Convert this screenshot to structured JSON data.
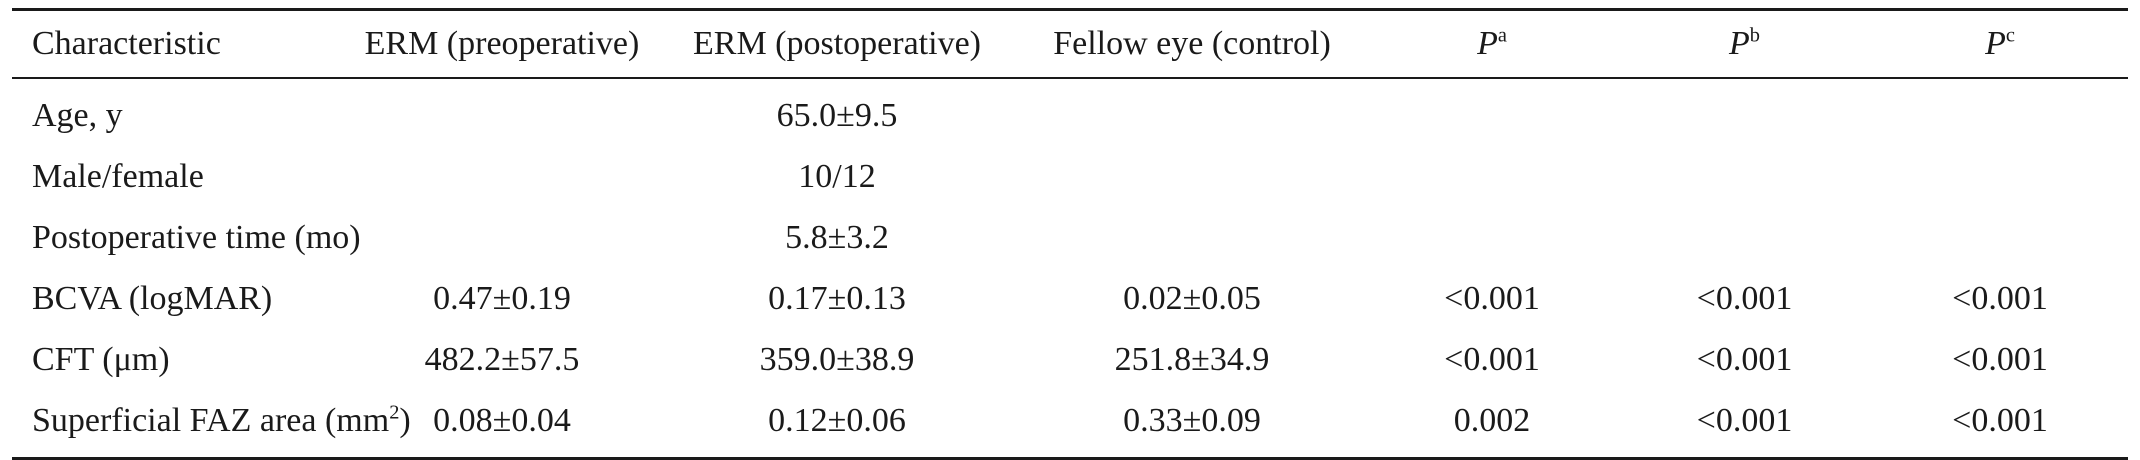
{
  "table": {
    "headers": {
      "characteristic": "Characteristic",
      "erm_pre": "ERM (preoperative)",
      "erm_post": "ERM (postoperative)",
      "fellow": "Fellow eye (control)",
      "pa": {
        "base": "P",
        "sup": "a"
      },
      "pb": {
        "base": "P",
        "sup": "b"
      },
      "pc": {
        "base": "P",
        "sup": "c"
      }
    },
    "rows": [
      {
        "label": "Age, y",
        "pre": "",
        "post": "65.0±9.5",
        "fellow": "",
        "pa": "",
        "pb": "",
        "pc": ""
      },
      {
        "label": "Male/female",
        "pre": "",
        "post": "10/12",
        "fellow": "",
        "pa": "",
        "pb": "",
        "pc": ""
      },
      {
        "label": "Postoperative time (mo)",
        "pre": "",
        "post": "5.8±3.2",
        "fellow": "",
        "pa": "",
        "pb": "",
        "pc": ""
      },
      {
        "label": "BCVA (logMAR)",
        "pre": "0.47±0.19",
        "post": "0.17±0.13",
        "fellow": "0.02±0.05",
        "pa": "<0.001",
        "pb": "<0.001",
        "pc": "<0.001"
      },
      {
        "label": "CFT (μm)",
        "pre": "482.2±57.5",
        "post": "359.0±38.9",
        "fellow": "251.8±34.9",
        "pa": "<0.001",
        "pb": "<0.001",
        "pc": "<0.001"
      },
      {
        "label_base": "Superficial FAZ area (mm",
        "label_sup": "2",
        "label_end": ")",
        "pre": "0.08±0.04",
        "post": "0.12±0.06",
        "fellow": "0.33±0.09",
        "pa": "0.002",
        "pb": "<0.001",
        "pc": "<0.001"
      }
    ]
  }
}
